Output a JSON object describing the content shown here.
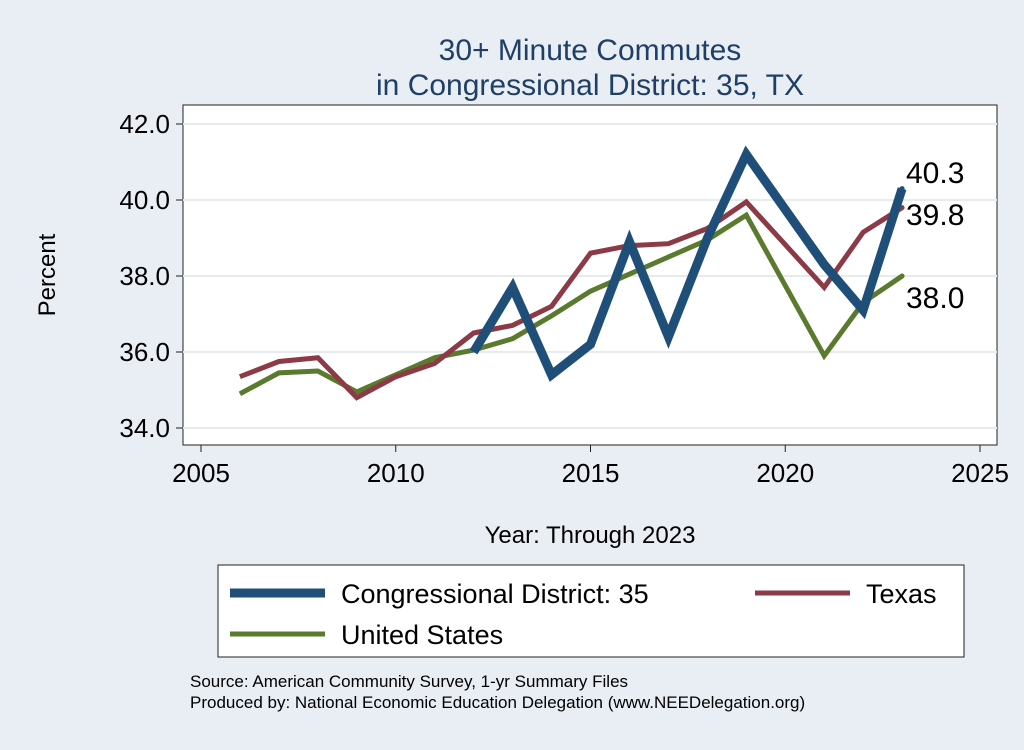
{
  "chart_data": {
    "type": "line",
    "title": [
      "30+ Minute Commutes",
      "in Congressional District:  35, TX"
    ],
    "xlabel": "Year: Through 2023",
    "ylabel": "Percent",
    "xlim": [
      2005,
      2025
    ],
    "ylim": [
      34.0,
      42.0
    ],
    "xticks": [
      "2005",
      "2010",
      "2015",
      "2020",
      "2025"
    ],
    "yticks": [
      "34.0",
      "36.0",
      "38.0",
      "40.0",
      "42.0"
    ],
    "grid": true,
    "legend_position": "bottom",
    "series": [
      {
        "name": "Congressional District:  35",
        "color": "#1f4e79",
        "x": [
          2012,
          2013,
          2014,
          2015,
          2016,
          2017,
          2018,
          2019,
          2021,
          2022,
          2023
        ],
        "values": [
          36.0,
          37.7,
          35.4,
          36.2,
          38.9,
          36.4,
          39.0,
          41.2,
          38.3,
          37.1,
          40.3
        ],
        "end_label": "40.3"
      },
      {
        "name": "Texas",
        "color": "#8b3a46",
        "x": [
          2006,
          2007,
          2008,
          2009,
          2010,
          2011,
          2012,
          2013,
          2014,
          2015,
          2016,
          2017,
          2018,
          2019,
          2021,
          2022,
          2023
        ],
        "values": [
          35.35,
          35.75,
          35.85,
          34.8,
          35.35,
          35.7,
          36.5,
          36.7,
          37.2,
          38.6,
          38.8,
          38.85,
          39.25,
          39.95,
          37.7,
          39.15,
          39.8
        ],
        "end_label": "39.8"
      },
      {
        "name": "United States",
        "color": "#5a7a2e",
        "x": [
          2006,
          2007,
          2008,
          2009,
          2010,
          2011,
          2012,
          2013,
          2014,
          2015,
          2016,
          2017,
          2018,
          2019,
          2021,
          2022,
          2023
        ],
        "values": [
          34.9,
          35.45,
          35.5,
          34.95,
          35.4,
          35.85,
          36.05,
          36.35,
          36.95,
          37.6,
          38.05,
          38.5,
          38.95,
          39.6,
          35.9,
          37.3,
          38.0
        ],
        "end_label": "38.0"
      }
    ],
    "legend": [
      "Congressional District:  35",
      "Texas",
      "United States"
    ],
    "source_lines": [
      "Source: American Community Survey, 1-yr Summary Files",
      "Produced by: National Economic Education Delegation (www.NEEDelegation.org)"
    ]
  }
}
